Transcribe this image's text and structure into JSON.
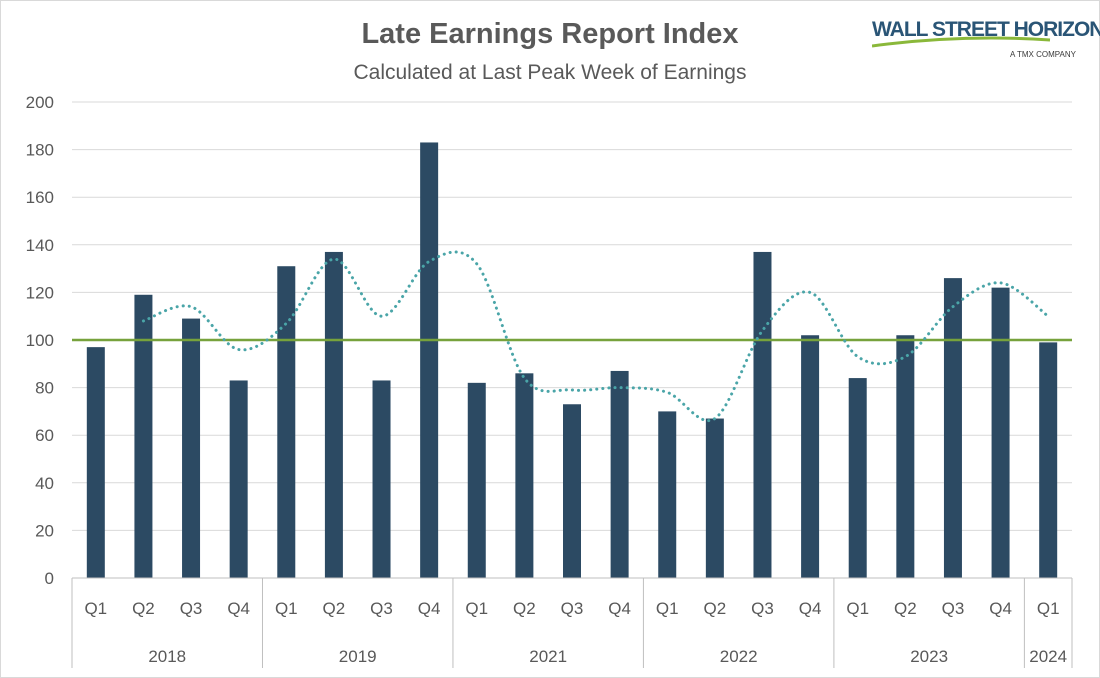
{
  "title": "Late Earnings Report Index",
  "subtitle": "Calculated at Last Peak Week of Earnings",
  "logo": {
    "text": "WALL STREET HORIZON",
    "subtext": "A TMX COMPANY"
  },
  "chart_data": {
    "type": "bar",
    "ylim": [
      0,
      200
    ],
    "yticks": [
      0,
      20,
      40,
      60,
      80,
      100,
      120,
      140,
      160,
      180,
      200
    ],
    "grid": true,
    "categories": [
      "Q1",
      "Q2",
      "Q3",
      "Q4",
      "Q1",
      "Q2",
      "Q3",
      "Q4",
      "Q1",
      "Q2",
      "Q3",
      "Q4",
      "Q1",
      "Q2",
      "Q3",
      "Q4",
      "Q1",
      "Q2",
      "Q3",
      "Q4",
      "Q1"
    ],
    "groups": [
      {
        "label": "2018",
        "count": 4
      },
      {
        "label": "2019",
        "count": 4
      },
      {
        "label": "2021",
        "count": 4
      },
      {
        "label": "2022",
        "count": 4
      },
      {
        "label": "2023",
        "count": 4
      },
      {
        "label": "2024",
        "count": 1
      }
    ],
    "series": [
      {
        "type": "bar",
        "color": "#2c4a63",
        "values": [
          97,
          119,
          109,
          83,
          131,
          137,
          83,
          183,
          82,
          86,
          73,
          87,
          70,
          67,
          137,
          102,
          84,
          102,
          126,
          122,
          99
        ]
      },
      {
        "type": "line",
        "style": "dotted",
        "color": "#4aa5a8",
        "values": [
          null,
          108,
          114,
          96,
          107,
          134,
          110,
          133,
          132,
          84,
          79,
          80,
          78,
          67,
          104,
          120,
          93,
          93,
          114,
          124,
          110
        ]
      }
    ],
    "reference_line": {
      "value": 100,
      "color": "#77a23c"
    }
  }
}
